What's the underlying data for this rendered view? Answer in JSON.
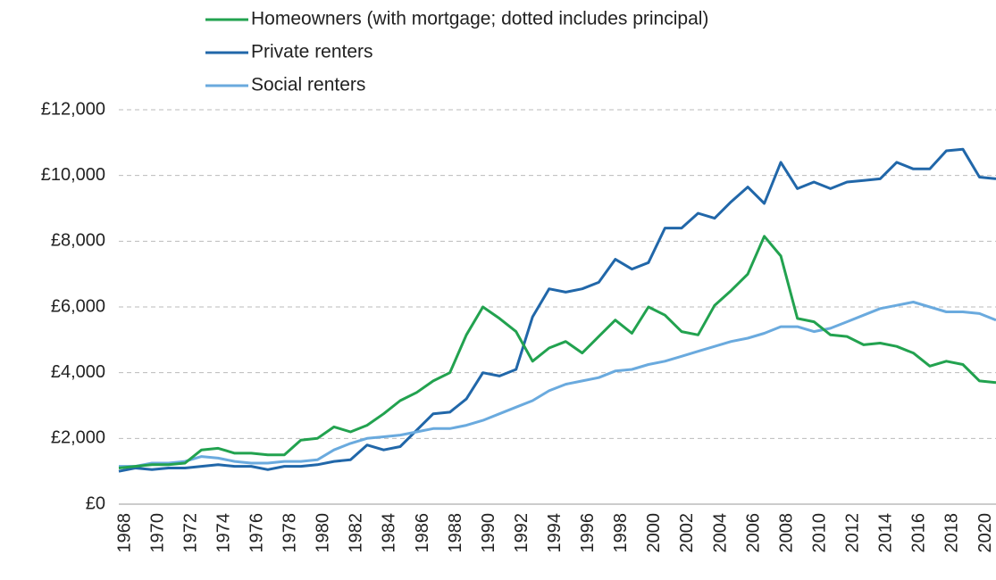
{
  "chart_data": {
    "type": "line",
    "x": [
      1968,
      1969,
      1970,
      1971,
      1972,
      1973,
      1974,
      1975,
      1976,
      1977,
      1978,
      1979,
      1980,
      1981,
      1982,
      1983,
      1984,
      1985,
      1986,
      1987,
      1988,
      1989,
      1990,
      1991,
      1992,
      1993,
      1994,
      1995,
      1996,
      1997,
      1998,
      1999,
      2000,
      2001,
      2002,
      2003,
      2004,
      2005,
      2006,
      2007,
      2008,
      2009,
      2010,
      2011,
      2012,
      2013,
      2014,
      2015,
      2016,
      2017,
      2018,
      2019,
      2020,
      2021
    ],
    "series": [
      {
        "name": "Homeowners (with mortgage; dotted includes principal)",
        "color": "#22a24f",
        "values": [
          1100,
          1150,
          1200,
          1200,
          1250,
          1650,
          1700,
          1550,
          1550,
          1500,
          1500,
          1950,
          2000,
          2350,
          2200,
          2400,
          2750,
          3150,
          3400,
          3750,
          4000,
          5150,
          6000,
          5650,
          5250,
          4350,
          4750,
          4950,
          4600,
          5100,
          5600,
          5200,
          6000,
          5750,
          5250,
          5150,
          6050,
          6500,
          7000,
          8150,
          7550,
          5650,
          5550,
          5150,
          5100,
          4850,
          4900,
          4800,
          4600,
          4200,
          4350,
          4250,
          3750,
          3700
        ]
      },
      {
        "name": "Private renters",
        "color": "#2167a9",
        "values": [
          1000,
          1100,
          1050,
          1100,
          1100,
          1150,
          1200,
          1150,
          1150,
          1050,
          1150,
          1150,
          1200,
          1300,
          1350,
          1800,
          1650,
          1750,
          2250,
          2750,
          2800,
          3200,
          4000,
          3900,
          4100,
          5700,
          6550,
          6450,
          6550,
          6750,
          7450,
          7150,
          7350,
          8400,
          8400,
          8850,
          8700,
          9200,
          9650,
          9150,
          10400,
          9600,
          9800,
          9600,
          9800,
          9850,
          9900,
          10400,
          10200,
          10200,
          10750,
          10800,
          9950,
          9900
        ]
      },
      {
        "name": "Social renters",
        "color": "#6aaade",
        "values": [
          1150,
          1150,
          1250,
          1250,
          1300,
          1450,
          1400,
          1300,
          1250,
          1250,
          1300,
          1300,
          1350,
          1650,
          1850,
          2000,
          2050,
          2100,
          2200,
          2300,
          2300,
          2400,
          2550,
          2750,
          2950,
          3150,
          3450,
          3650,
          3750,
          3850,
          4050,
          4100,
          4250,
          4350,
          4500,
          4650,
          4800,
          4950,
          5050,
          5200,
          5400,
          5400,
          5250,
          5350,
          5550,
          5750,
          5950,
          6050,
          6150,
          6000,
          5850,
          5850,
          5800,
          5600
        ]
      }
    ],
    "xlim": [
      1968,
      2021
    ],
    "xticks": [
      1968,
      1970,
      1972,
      1974,
      1976,
      1978,
      1980,
      1982,
      1984,
      1986,
      1988,
      1990,
      1992,
      1994,
      1996,
      1998,
      2000,
      2002,
      2004,
      2006,
      2008,
      2010,
      2012,
      2014,
      2016,
      2018,
      2020
    ],
    "ylim": [
      0,
      12000
    ],
    "yticks": [
      {
        "value": 0,
        "label": "£0"
      },
      {
        "value": 2000,
        "label": "£2,000"
      },
      {
        "value": 4000,
        "label": "£4,000"
      },
      {
        "value": 6000,
        "label": "£6,000"
      },
      {
        "value": 8000,
        "label": "£8,000"
      },
      {
        "value": 10000,
        "label": "£10,000"
      },
      {
        "value": 12000,
        "label": "£12,000"
      }
    ],
    "grid": true
  }
}
